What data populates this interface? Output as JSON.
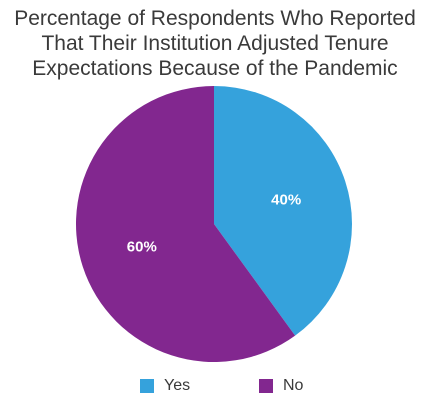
{
  "chart_data": {
    "type": "pie",
    "title": "Percentage of Respondents Who Reported That Their Institution Adjusted Tenure Expectations Because of the Pandemic",
    "title_lines": [
      "Percentage of Respondents Who Reported",
      "That Their Institution Adjusted Tenure",
      "Expectations Because of the Pandemic"
    ],
    "categories": [
      "Yes",
      "No"
    ],
    "values": [
      40,
      60
    ],
    "labels": [
      "40%",
      "60%"
    ],
    "colors": [
      "#35a2dc",
      "#82278f"
    ],
    "legend_placement": "bottom"
  }
}
